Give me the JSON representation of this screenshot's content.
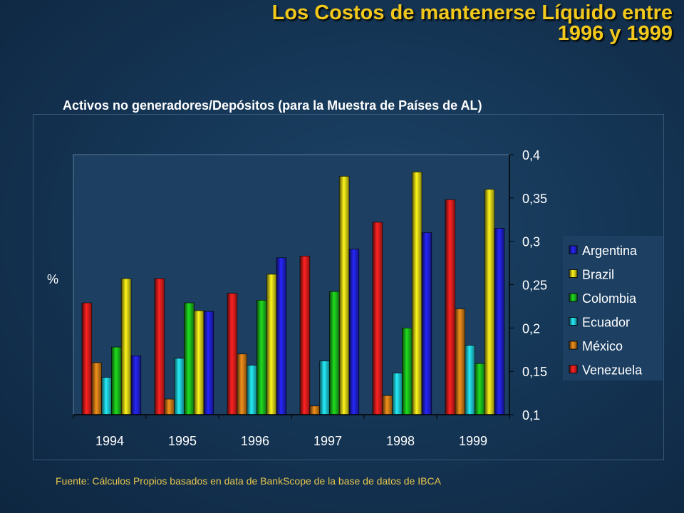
{
  "slide": {
    "title_line1": "Los Costos de mantenerse Líquido entre",
    "title_line2": "1996 y 1999",
    "subtitle": "Activos no generadores/Depósitos (para la Muestra de Países de AL)",
    "source": "Fuente: Cálculos Propios basados en data de BankScope de la base de datos de IBCA"
  },
  "chart_data": {
    "type": "bar",
    "title": "Activos no generadores/Depósitos (para la Muestra de Países de AL)",
    "xlabel": "",
    "ylabel": "%",
    "categories": [
      "1994",
      "1995",
      "1996",
      "1997",
      "1998",
      "1999"
    ],
    "ylim": [
      0.1,
      0.4
    ],
    "yticks": [
      "0,1",
      "0,15",
      "0,2",
      "0,25",
      "0,3",
      "0,35",
      "0,4"
    ],
    "yaxis_side": "right",
    "grid": false,
    "legend_position": "right",
    "series": [
      {
        "name": "Venezuela",
        "color": "#ff2020",
        "values": [
          0.229,
          0.257,
          0.24,
          0.283,
          0.322,
          0.348
        ]
      },
      {
        "name": "México",
        "color": "#e68a1a",
        "values": [
          0.16,
          0.118,
          0.17,
          0.11,
          0.122,
          0.222
        ]
      },
      {
        "name": "Ecuador",
        "color": "#22e2ee",
        "values": [
          0.143,
          0.165,
          0.157,
          0.162,
          0.148,
          0.18
        ]
      },
      {
        "name": "Colombia",
        "color": "#1ed21e",
        "values": [
          0.178,
          0.229,
          0.232,
          0.242,
          0.2,
          0.159
        ]
      },
      {
        "name": "Brazil",
        "color": "#f2ea1a",
        "values": [
          0.257,
          0.22,
          0.262,
          0.375,
          0.38,
          0.36
        ]
      },
      {
        "name": "Argentina",
        "color": "#2424ee",
        "values": [
          0.168,
          0.219,
          0.281,
          0.291,
          0.31,
          0.315
        ]
      }
    ],
    "legend_order": [
      "Argentina",
      "Brazil",
      "Colombia",
      "Ecuador",
      "México",
      "Venezuela"
    ]
  }
}
